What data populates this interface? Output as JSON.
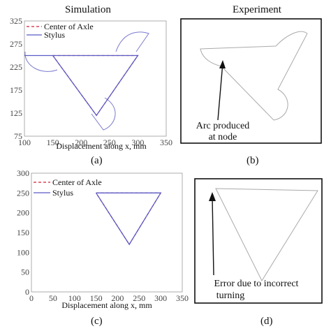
{
  "headers": {
    "simulation": "Simulation",
    "experiment": "Experiment"
  },
  "captions": {
    "a": "(a)",
    "b": "(b)",
    "c": "(c)",
    "d": "(d)"
  },
  "annotations": {
    "b_line1": "Arc produced",
    "b_line2": "at node",
    "d_line1": "Error due to incorrect",
    "d_line2": "turning"
  },
  "chart_data": [
    {
      "id": "a",
      "type": "line",
      "xlabel": "Displacement along x, mm",
      "ylabel": "",
      "xlim": [
        100,
        350
      ],
      "ylim": [
        75,
        325
      ],
      "xticks": [
        100,
        150,
        200,
        250,
        300,
        350
      ],
      "yticks": [
        75,
        125,
        175,
        225,
        275,
        325
      ],
      "ytick_labels": [
        "75",
        "125",
        "175",
        "225",
        "275",
        "325"
      ],
      "legend": [
        "Center of Axle",
        "Stylus"
      ],
      "legend_position": "top-left",
      "series": [
        {
          "name": "Center of Axle",
          "style": "dashed",
          "color": "#d0203a",
          "x": [
            150,
            300,
            227,
            150
          ],
          "y": [
            250,
            250,
            120,
            250
          ]
        },
        {
          "name": "Stylus",
          "style": "solid",
          "color": "#5b5bc7",
          "x": [
            100,
            300,
            227,
            150
          ],
          "y": [
            250,
            250,
            120,
            250
          ]
        }
      ]
    },
    {
      "id": "c",
      "type": "line",
      "xlabel": "Displacement along x, mm",
      "ylabel": "",
      "xlim": [
        0,
        350
      ],
      "ylim": [
        0,
        300
      ],
      "xticks": [
        0,
        50,
        100,
        150,
        200,
        250,
        300,
        350
      ],
      "yticks": [
        0,
        50,
        100,
        150,
        200,
        250,
        300
      ],
      "legend": [
        "Center of Axle",
        "Stylus"
      ],
      "legend_position": "top-left",
      "series": [
        {
          "name": "Center of Axle",
          "style": "dashed",
          "color": "#d0203a",
          "x": [
            150,
            300,
            227,
            150
          ],
          "y": [
            250,
            250,
            120,
            250
          ]
        },
        {
          "name": "Stylus",
          "style": "solid",
          "color": "#5b5bc7",
          "x": [
            150,
            300,
            227,
            150
          ],
          "y": [
            250,
            250,
            120,
            250
          ]
        }
      ]
    }
  ]
}
